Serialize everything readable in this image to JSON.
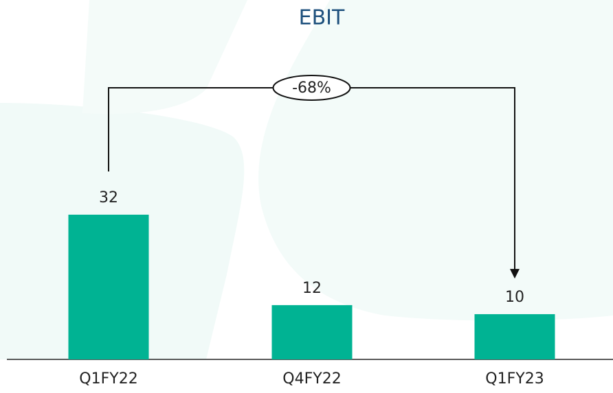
{
  "chart_data": {
    "type": "bar",
    "title": "EBIT",
    "categories": [
      "Q1FY22",
      "Q4FY22",
      "Q1FY23"
    ],
    "values": [
      32,
      12,
      10
    ],
    "color": "#00b393",
    "annotation": "-68%"
  }
}
